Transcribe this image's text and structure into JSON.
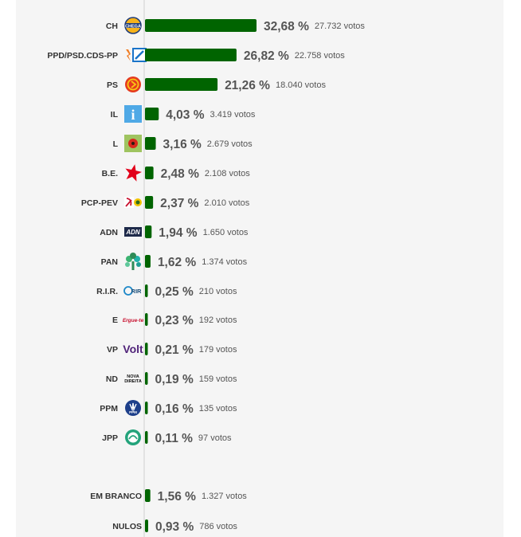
{
  "chart_data": {
    "type": "bar",
    "orientation": "horizontal",
    "title": "",
    "xlabel": "",
    "ylabel": "",
    "bar_color": "#006400",
    "grid": false,
    "legend": "none",
    "xlim": [
      0,
      32.68
    ],
    "categories": [
      "CH",
      "PPD/PSD.CDS-PP",
      "PS",
      "IL",
      "L",
      "B.E.",
      "PCP-PEV",
      "ADN",
      "PAN",
      "R.I.R.",
      "E",
      "VP",
      "ND",
      "PPM",
      "JPP",
      "EM BRANCO",
      "NULOS"
    ],
    "series": [
      {
        "values": [
          32.68,
          26.82,
          21.26,
          4.03,
          3.16,
          2.48,
          2.37,
          1.94,
          1.62,
          0.25,
          0.23,
          0.21,
          0.19,
          0.16,
          0.11,
          1.56,
          0.93
        ]
      }
    ],
    "percent_labels": [
      "32,68 %",
      "26,82 %",
      "21,26 %",
      "4,03 %",
      "3,16 %",
      "2,48 %",
      "2,37 %",
      "1,94 %",
      "1,62 %",
      "0,25 %",
      "0,23 %",
      "0,21 %",
      "0,19 %",
      "0,16 %",
      "0,11 %",
      "1,56 %",
      "0,93 %"
    ],
    "votes": [
      27732,
      22758,
      18040,
      3419,
      2679,
      2108,
      2010,
      1650,
      1374,
      210,
      192,
      179,
      159,
      135,
      97,
      1327,
      786
    ],
    "votes_labels": [
      "27.732 votos",
      "22.758 votos",
      "18.040 votos",
      "3.419 votos",
      "2.679 votos",
      "2.108 votos",
      "2.010 votos",
      "1.650 votos",
      "1.374 votos",
      "210 votos",
      "192 votos",
      "179 votos",
      "159 votos",
      "135 votos",
      "97 votos",
      "1.327 votos",
      "786 votos"
    ],
    "logo_icons": [
      "ch-logo-icon",
      "ppd-psd-cds-logo-icon",
      "ps-logo-icon",
      "il-logo-icon",
      "livre-logo-icon",
      "be-star-icon",
      "pcp-pev-logo-icon",
      "adn-logo-icon",
      "pan-tree-icon",
      "rir-logo-icon",
      "ergue-te-logo-icon",
      "volt-logo-icon",
      "nova-direita-logo-icon",
      "ppm-logo-icon",
      "jpp-logo-icon"
    ],
    "logo_texts": {
      "CH": "CHEGA",
      "IL": "i",
      "ADN": "ADN",
      "R.I.R.": "RIR",
      "E": "Ergue-te",
      "VP": "Volt",
      "ND": [
        "NOVA",
        "DIREITA"
      ],
      "PPM": "PPM"
    }
  }
}
